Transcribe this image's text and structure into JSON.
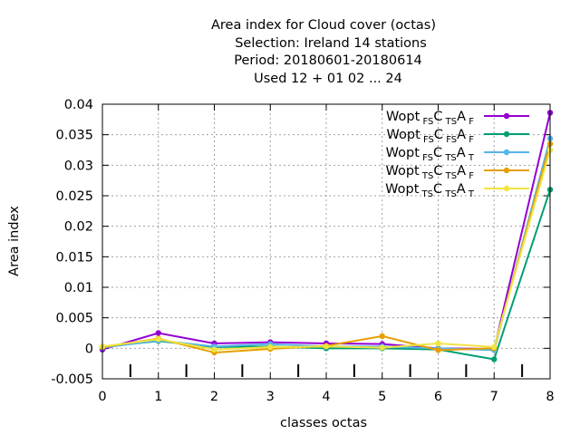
{
  "chart_data": {
    "type": "line",
    "title_lines": [
      "Area index  for Cloud cover (octas)",
      "Selection: Ireland     14 stations",
      "Period: 20180601-20180614",
      "Used  12 + 01 02 ... 24"
    ],
    "xlabel": "classes octas",
    "ylabel": "Area index",
    "xlim": [
      0,
      8
    ],
    "ylim": [
      -0.005,
      0.04
    ],
    "x_ticks": [
      "0",
      "1",
      "2",
      "3",
      "4",
      "5",
      "6",
      "7",
      "8"
    ],
    "y_ticks": [
      "-0.005",
      "0",
      "0.005",
      "0.01",
      "0.015",
      "0.02",
      "0.025",
      "0.03",
      "0.035",
      "0.04"
    ],
    "grid": true,
    "legend_position": "top-right",
    "x": [
      0,
      1,
      2,
      3,
      4,
      5,
      6,
      7,
      8
    ],
    "series": [
      {
        "base": "Wopt",
        "sub1": "FS",
        "mid": "C",
        "sub2": "TS",
        "end": "A",
        "sub3": "F",
        "color": "#9400d3",
        "values": [
          -0.0002,
          0.0025,
          0.0008,
          0.001,
          0.0008,
          0.0007,
          0.0,
          -0.0001,
          0.0386
        ]
      },
      {
        "base": "Wopt",
        "sub1": "FS",
        "mid": "C",
        "sub2": "FS",
        "end": "A",
        "sub3": "F",
        "color": "#009e73",
        "values": [
          0.0002,
          0.0012,
          0.0002,
          0.0003,
          0.0,
          0.0,
          -0.0002,
          -0.0018,
          0.026
        ]
      },
      {
        "base": "Wopt",
        "sub1": "FS",
        "mid": "C",
        "sub2": "TS",
        "end": "A",
        "sub3": "T",
        "color": "#56b4e9",
        "values": [
          0.0001,
          0.0013,
          0.0003,
          0.0007,
          0.0003,
          0.0003,
          0.0,
          -0.0003,
          0.0344
        ]
      },
      {
        "base": "Wopt",
        "sub1": "TS",
        "mid": "C",
        "sub2": "TS",
        "end": "A",
        "sub3": "F",
        "color": "#e69f00",
        "values": [
          0.0002,
          0.0016,
          -0.0007,
          -0.0001,
          0.0004,
          0.002,
          -0.0003,
          0.0,
          0.0335
        ]
      },
      {
        "base": "Wopt",
        "sub1": "TS",
        "mid": "C",
        "sub2": "TS",
        "end": "A",
        "sub3": "T",
        "color": "#f0e442",
        "values": [
          0.0003,
          0.0015,
          -0.0002,
          0.0002,
          0.0003,
          0.0001,
          0.0008,
          0.0002,
          0.0325
        ]
      }
    ]
  }
}
